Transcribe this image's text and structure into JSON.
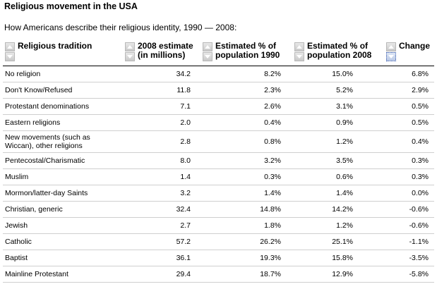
{
  "title": "Religious movement in the USA",
  "subtitle": "How Americans describe their religious identity, 1990 — 2008:",
  "columns": [
    "Religious tradition",
    "2008 estimate (in millions)",
    "Estimated % of population 1990",
    "Estimated % of population 2008",
    "Change"
  ],
  "icons": {
    "sort_up": "sort-ascending-icon",
    "sort_down": "sort-descending-icon"
  },
  "rows": [
    [
      "No religion",
      "34.2",
      "8.2%",
      "15.0%",
      "6.8%"
    ],
    [
      "Don't Know/Refused",
      "11.8",
      "2.3%",
      "5.2%",
      "2.9%"
    ],
    [
      "Protestant denominations",
      "7.1",
      "2.6%",
      "3.1%",
      "0.5%"
    ],
    [
      "Eastern religions",
      "2.0",
      "0.4%",
      "0.9%",
      "0.5%"
    ],
    [
      "New movements (such as Wiccan), other religions",
      "2.8",
      "0.8%",
      "1.2%",
      "0.4%"
    ],
    [
      "Pentecostal/Charismatic",
      "8.0",
      "3.2%",
      "3.5%",
      "0.3%"
    ],
    [
      "Muslim",
      "1.4",
      "0.3%",
      "0.6%",
      "0.3%"
    ],
    [
      "Mormon/latter-day Saints",
      "3.2",
      "1.4%",
      "1.4%",
      "0.0%"
    ],
    [
      "Christian, generic",
      "32.4",
      "14.8%",
      "14.2%",
      "-0.6%"
    ],
    [
      "Jewish",
      "2.7",
      "1.8%",
      "1.2%",
      "-0.6%"
    ],
    [
      "Catholic",
      "57.2",
      "26.2%",
      "25.1%",
      "-1.1%"
    ],
    [
      "Baptist",
      "36.1",
      "19.3%",
      "15.8%",
      "-3.5%"
    ],
    [
      "Mainline Protestant",
      "29.4",
      "18.7%",
      "12.9%",
      "-5.8%"
    ]
  ]
}
